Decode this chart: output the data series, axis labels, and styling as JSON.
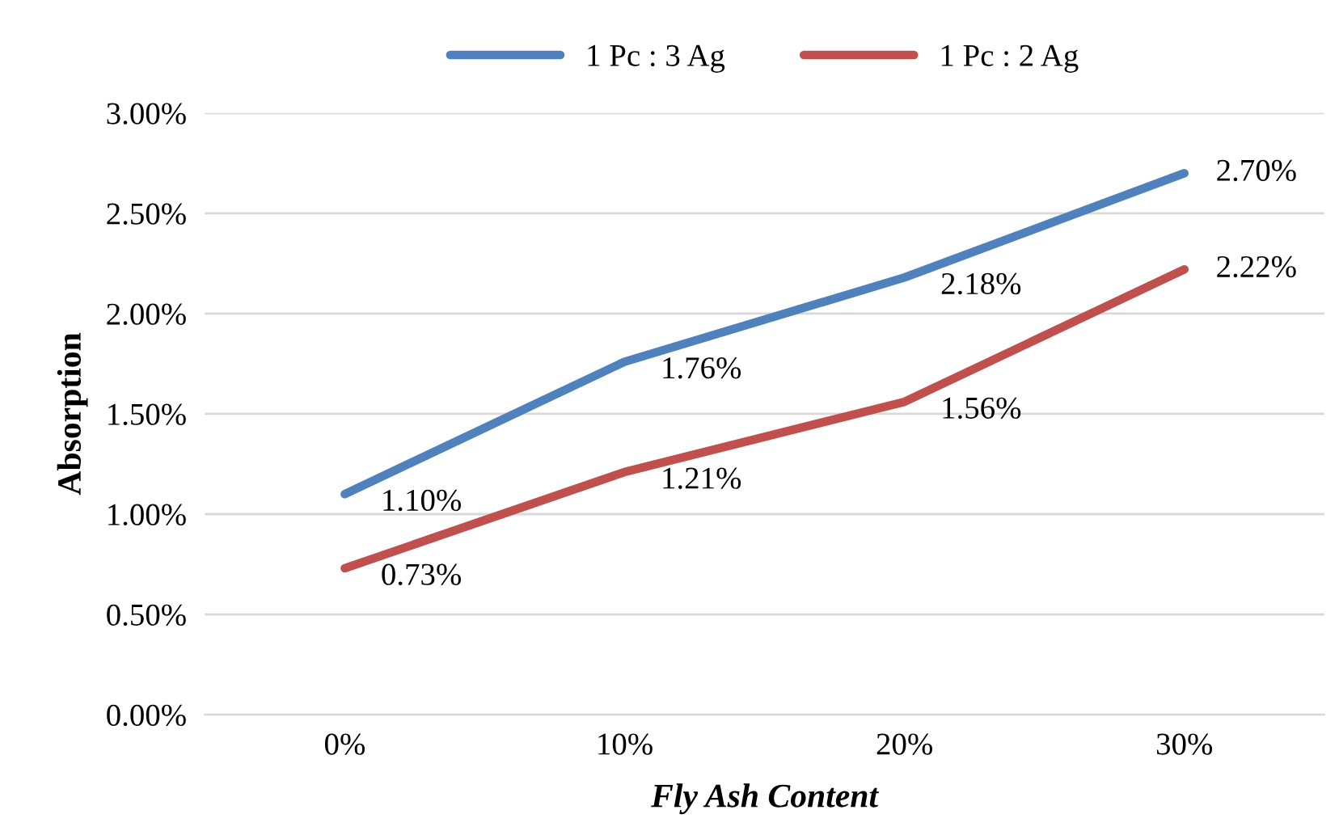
{
  "chart_data": {
    "type": "line",
    "xlabel": "Fly Ash Content",
    "ylabel": "Absorption",
    "categories": [
      "0%",
      "10%",
      "20%",
      "30%"
    ],
    "series": [
      {
        "name": "1 Pc : 3 Ag",
        "color": "#4f81bd",
        "values": [
          1.1,
          1.76,
          2.18,
          2.7
        ],
        "value_labels": [
          "1.10%",
          "1.76%",
          "2.18%",
          "2.70%"
        ]
      },
      {
        "name": "1 Pc : 2 Ag",
        "color": "#c0504d",
        "values": [
          0.73,
          1.21,
          1.56,
          2.22
        ],
        "value_labels": [
          "0.73%",
          "1.21%",
          "1.56%",
          "2.22%"
        ]
      }
    ],
    "ylim": [
      0,
      3.0
    ],
    "yticks": [
      {
        "value": 0,
        "label": "0.00%"
      },
      {
        "value": 0.5,
        "label": "0.50%"
      },
      {
        "value": 1.0,
        "label": "1.00%"
      },
      {
        "value": 1.5,
        "label": "1.50%"
      },
      {
        "value": 2.0,
        "label": "2.00%"
      },
      {
        "value": 2.5,
        "label": "2.50%"
      },
      {
        "value": 3.0,
        "label": "3.00%"
      }
    ],
    "grid": "y",
    "legend": "top",
    "marker": "none",
    "line_style": "solid"
  }
}
